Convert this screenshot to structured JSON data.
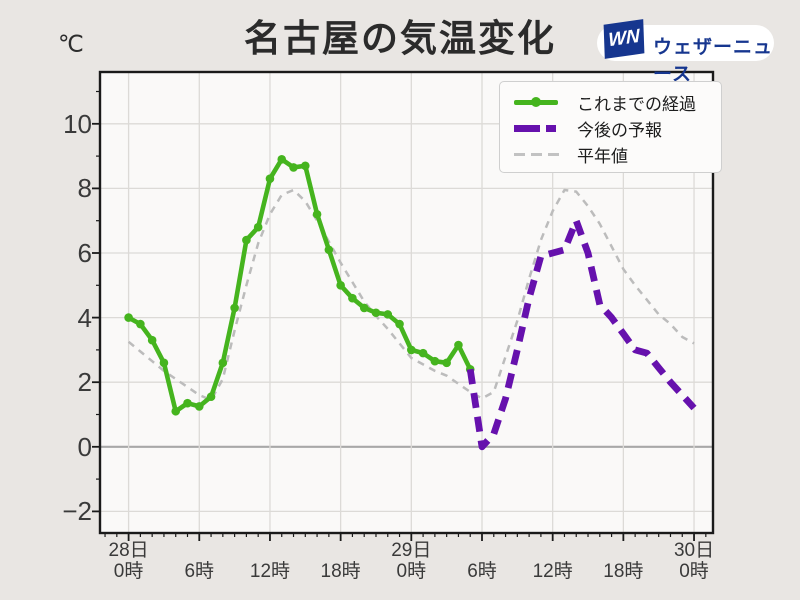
{
  "header": {
    "unit_label": "℃",
    "title": "名古屋の気温変化",
    "logo": {
      "mark": "WN",
      "text": "ウェザーニュース"
    }
  },
  "legend": [
    {
      "label": "これまでの経過",
      "color": "#45b41e"
    },
    {
      "label": "今後の予報",
      "color": "#6611ad"
    },
    {
      "label": "平年値",
      "color": "#c0c0c0"
    }
  ],
  "chart_data": {
    "type": "line",
    "x_unit": "hours from 28日0時",
    "xlim_hours": [
      -2.4,
      49.6
    ],
    "ylim": [
      -2.67,
      11.6
    ],
    "grid": true,
    "legend_position": "upper right",
    "y_axis": {
      "unit": "℃",
      "ticks": [
        {
          "label": "10",
          "value": 10
        },
        {
          "label": "8",
          "value": 8
        },
        {
          "label": "6",
          "value": 6
        },
        {
          "label": "4",
          "value": 4
        },
        {
          "label": "2",
          "value": 2
        },
        {
          "label": "0",
          "value": 0
        },
        {
          "label": "−2",
          "value": -2
        }
      ],
      "zero_line": true
    },
    "x_axis": {
      "day_labels": [
        {
          "text": "28日",
          "hour": 0
        },
        {
          "text": "29日",
          "hour": 24
        },
        {
          "text": "30日",
          "hour": 48
        }
      ],
      "hour_labels": [
        {
          "text": "0時",
          "hour": 0
        },
        {
          "text": "6時",
          "hour": 6
        },
        {
          "text": "12時",
          "hour": 12
        },
        {
          "text": "18時",
          "hour": 18
        },
        {
          "text": "0時",
          "hour": 24
        },
        {
          "text": "6時",
          "hour": 30
        },
        {
          "text": "12時",
          "hour": 36
        },
        {
          "text": "18時",
          "hour": 42
        },
        {
          "text": "0時",
          "hour": 48
        }
      ]
    },
    "series": [
      {
        "name": "これまでの経過",
        "color": "#45b41e",
        "style": "solid",
        "marker": true,
        "start_hour": 0,
        "values": [
          4.0,
          3.8,
          3.3,
          2.6,
          1.1,
          1.35,
          1.25,
          1.55,
          2.6,
          4.3,
          6.4,
          6.8,
          8.3,
          8.9,
          8.65,
          8.7,
          7.2,
          6.1,
          5.0,
          4.6,
          4.3,
          4.15,
          4.1,
          3.8,
          3.0,
          2.9,
          2.65,
          2.6,
          3.15,
          2.4
        ]
      },
      {
        "name": "今後の予報",
        "color": "#6611ad",
        "style": "dashed",
        "marker": false,
        "start_hour": 29,
        "values": [
          2.4,
          0.0,
          0.4,
          1.5,
          3.0,
          4.6,
          5.9,
          6.0,
          6.1,
          7.0,
          6.0,
          4.4,
          4.0,
          3.5,
          3.0,
          2.9,
          2.45,
          2.0,
          1.6,
          1.2
        ]
      },
      {
        "name": "平年値",
        "color": "#bcbcbc",
        "style": "dashed-thin",
        "marker": false,
        "start_hour": 0,
        "values": [
          3.25,
          2.95,
          2.65,
          2.35,
          2.1,
          1.85,
          1.6,
          1.45,
          2.1,
          3.6,
          5.0,
          6.3,
          7.2,
          7.8,
          7.95,
          7.6,
          7.0,
          6.35,
          5.7,
          5.1,
          4.5,
          4.05,
          3.65,
          3.2,
          2.75,
          2.55,
          2.35,
          2.2,
          1.95,
          1.7,
          1.5,
          1.7,
          2.8,
          3.9,
          5.2,
          6.4,
          7.3,
          7.95,
          7.9,
          7.45,
          6.9,
          6.2,
          5.5,
          5.0,
          4.55,
          4.1,
          3.8,
          3.4,
          3.2
        ]
      }
    ]
  }
}
